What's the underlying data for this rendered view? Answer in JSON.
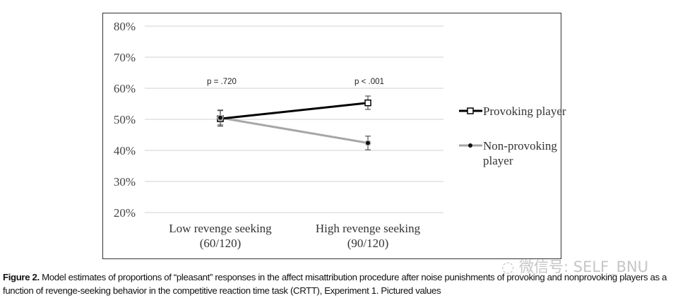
{
  "chart_data": {
    "type": "line",
    "categories": [
      "Low revenge seeking\n(60/120)",
      "High revenge seeking\n(90/120)"
    ],
    "category_lines": [
      [
        "Low revenge seeking",
        "(60/120)"
      ],
      [
        "High revenge seeking",
        "(90/120)"
      ]
    ],
    "ylim": [
      20,
      80
    ],
    "yticks": [
      "20%",
      "30%",
      "40%",
      "50%",
      "60%",
      "70%",
      "80%"
    ],
    "ytick_values": [
      20,
      30,
      40,
      50,
      60,
      70,
      80
    ],
    "grid": true,
    "legend": "right",
    "annotations": [
      "p = .720",
      "p < .001"
    ],
    "series": [
      {
        "name": "Provoking player",
        "values": [
          50.2,
          55.3
        ],
        "err_low": [
          47.8,
          53.2
        ],
        "err_high": [
          53,
          57.5
        ],
        "color": "#000000",
        "marker": "open-square"
      },
      {
        "name": "Non-provoking player",
        "legend_lines": [
          "Non-provoking",
          "player"
        ],
        "values": [
          50.5,
          42.4
        ],
        "err_low": [
          48.2,
          40.2
        ],
        "err_high": [
          52.8,
          44.6
        ],
        "color": "#a6a6a6",
        "marker": "filled-circle"
      }
    ]
  },
  "caption": {
    "label": "Figure 2.",
    "text": "Model estimates of proportions of “pleasant” responses in the affect misattribution procedure after noise punishments of provoking and nonprovoking players as a function of revenge-seeking behavior in the competitive reaction time task (CRTT), Experiment 1. Pictured values"
  },
  "watermark": "微信号: SELF_BNU"
}
